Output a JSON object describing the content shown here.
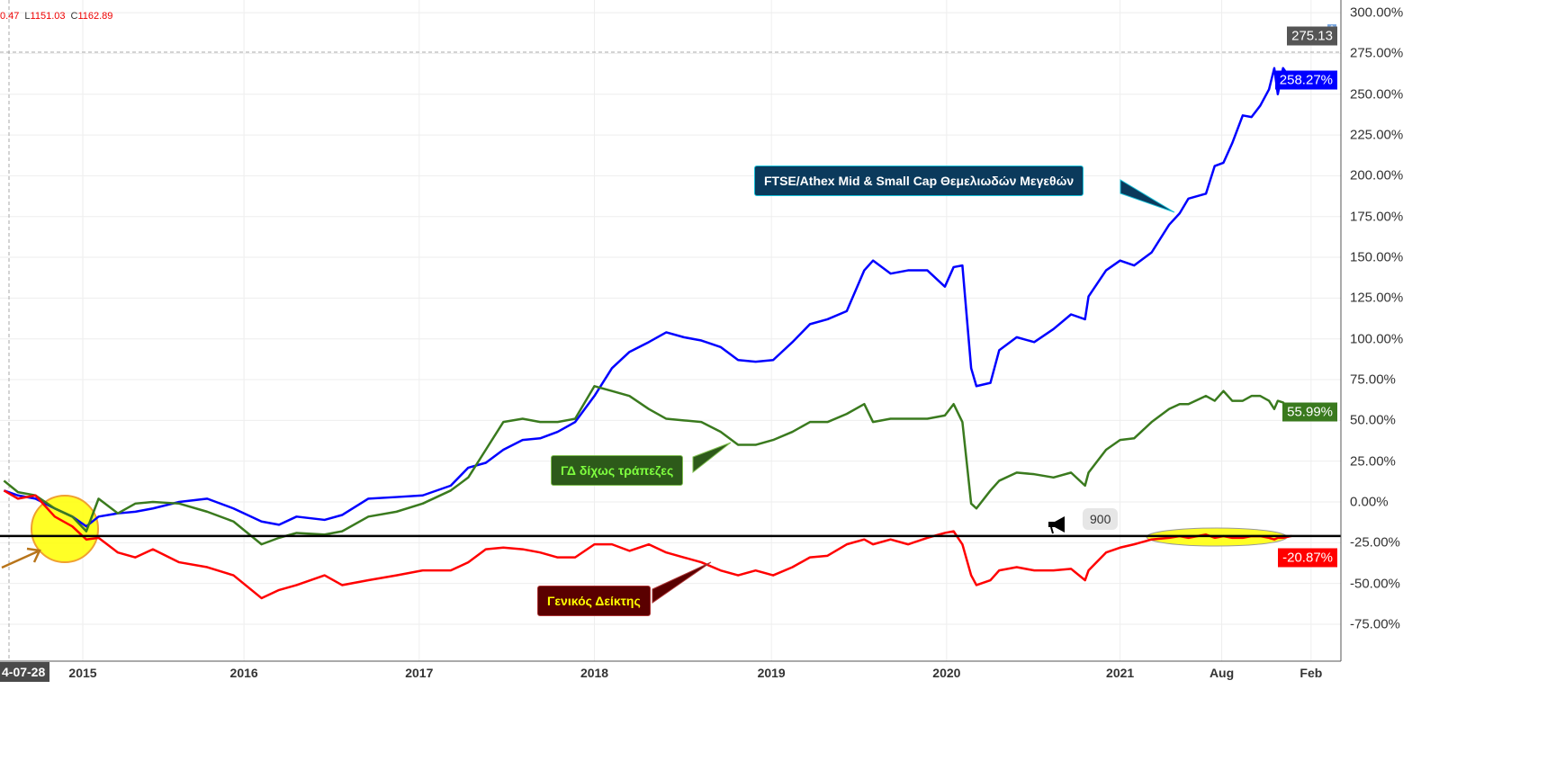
{
  "header": {
    "ohlc_partial": "0.47",
    "low_label": "L",
    "low": "1151.03",
    "close_label": "C",
    "close": "1162.89"
  },
  "start_date": "4-07-28",
  "crosshair_value": "275.13",
  "hline": {
    "label": "900",
    "icon": "megaphone-icon"
  },
  "colors": {
    "blue": "#0000ff",
    "green": "#3a7a1e",
    "red": "#ff0000"
  },
  "chart_data": {
    "type": "line",
    "xlabel": "",
    "ylabel": "",
    "ylim": [
      -75,
      300
    ],
    "yticks": [
      "300.00%",
      "275.00%",
      "250.00%",
      "225.00%",
      "200.00%",
      "175.00%",
      "150.00%",
      "125.00%",
      "100.00%",
      "75.00%",
      "50.00%",
      "25.00%",
      "0.00%",
      "-25.00%",
      "-50.00%",
      "-75.00%"
    ],
    "ytick_values": [
      300,
      275,
      250,
      225,
      200,
      175,
      150,
      125,
      100,
      75,
      50,
      25,
      0,
      -25,
      -50,
      -75
    ],
    "xticks": [
      {
        "label": "2015",
        "x": 2015.0
      },
      {
        "label": "2016",
        "x": 2015.92
      },
      {
        "label": "2017",
        "x": 2016.92
      },
      {
        "label": "2018",
        "x": 2017.92
      },
      {
        "label": "2019",
        "x": 2018.93
      },
      {
        "label": "2020",
        "x": 2019.93
      },
      {
        "label": "2021",
        "x": 2020.92
      },
      {
        "label": "Aug",
        "x": 2021.5
      },
      {
        "label": "Feb",
        "x": 2022.01
      }
    ],
    "x": [
      2014.55,
      2014.63,
      2014.73,
      2014.84,
      2014.94,
      2015.02,
      2015.09,
      2015.2,
      2015.3,
      2015.4,
      2015.55,
      2015.71,
      2015.86,
      2016.02,
      2016.12,
      2016.22,
      2016.38,
      2016.48,
      2016.63,
      2016.79,
      2016.94,
      2017.1,
      2017.2,
      2017.3,
      2017.4,
      2017.51,
      2017.61,
      2017.71,
      2017.81,
      2017.92,
      2018.02,
      2018.12,
      2018.23,
      2018.33,
      2018.43,
      2018.53,
      2018.64,
      2018.74,
      2018.84,
      2018.94,
      2019.05,
      2019.15,
      2019.25,
      2019.36,
      2019.46,
      2019.51,
      2019.61,
      2019.71,
      2019.82,
      2019.92,
      2019.97,
      2020.02,
      2020.07,
      2020.1,
      2020.18,
      2020.23,
      2020.33,
      2020.43,
      2020.54,
      2020.64,
      2020.72,
      2020.74,
      2020.84,
      2020.92,
      2021.0,
      2021.1,
      2021.2,
      2021.26,
      2021.31,
      2021.41,
      2021.46,
      2021.51,
      2021.56,
      2021.62,
      2021.67,
      2021.72,
      2021.77,
      2021.8,
      2021.82,
      2021.85,
      2021.9
    ],
    "series": [
      {
        "name": "FTSE/Athex Mid & Small Cap Θεμελιωδών Μεγεθών",
        "last_label": "258.27%",
        "color": "#0000ff",
        "values": [
          7,
          4,
          2,
          -4,
          -9,
          -15,
          -9,
          -7,
          -6,
          -4,
          0,
          2,
          -4,
          -12,
          -14,
          -9,
          -11,
          -8,
          2,
          3,
          4,
          10,
          21,
          24,
          32,
          38,
          39,
          43,
          49,
          65,
          82,
          92,
          98,
          104,
          101,
          99,
          95,
          87,
          86,
          87,
          98,
          109,
          112,
          117,
          142,
          148,
          140,
          142,
          142,
          132,
          144,
          145,
          82,
          71,
          73,
          93,
          101,
          98,
          106,
          115,
          112,
          126,
          142,
          148,
          145,
          153,
          170,
          177,
          186,
          189,
          206,
          208,
          220,
          237,
          236,
          243,
          253,
          266,
          250,
          266,
          258.27
        ]
      },
      {
        "name": "ΓΔ δίχως τράπεζες",
        "last_label": "55.99%",
        "color": "#3a7a1e",
        "values": [
          13,
          6,
          4,
          -4,
          -9,
          -18,
          2,
          -7,
          -1,
          0,
          -1,
          -6,
          -12,
          -26,
          -22,
          -19,
          -20,
          -18,
          -9,
          -6,
          -1,
          7,
          15,
          32,
          49,
          51,
          49,
          49,
          51,
          71,
          68,
          65,
          57,
          51,
          50,
          49,
          43,
          35,
          35,
          38,
          43,
          49,
          49,
          54,
          60,
          49,
          51,
          51,
          51,
          53,
          60,
          49,
          -1,
          -4,
          7,
          13,
          18,
          17,
          15,
          18,
          10,
          18,
          32,
          38,
          39,
          49,
          57,
          60,
          60,
          65,
          62,
          68,
          62,
          62,
          65,
          65,
          62,
          57,
          62,
          61,
          55.99
        ]
      },
      {
        "name": "Γενικός Δείκτης",
        "last_label": "-20.87%",
        "color": "#ff0000",
        "values": [
          7,
          2,
          4,
          -9,
          -15,
          -23,
          -22,
          -31,
          -34,
          -29,
          -37,
          -40,
          -45,
          -59,
          -54,
          -51,
          -45,
          -51,
          -48,
          -45,
          -42,
          -42,
          -37,
          -29,
          -28,
          -29,
          -31,
          -34,
          -34,
          -26,
          -26,
          -30,
          -26,
          -31,
          -34,
          -37,
          -42,
          -45,
          -42,
          -45,
          -40,
          -34,
          -33,
          -26,
          -23,
          -26,
          -23,
          -26,
          -22,
          -19,
          -18,
          -26,
          -45,
          -51,
          -48,
          -42,
          -40,
          -42,
          -42,
          -41,
          -48,
          -42,
          -31,
          -28,
          -26,
          -23,
          -22,
          -21,
          -22,
          -20,
          -22,
          -21,
          -22,
          -22,
          -21,
          -21,
          -22,
          -23,
          -22,
          -22,
          -20.87
        ]
      }
    ],
    "hline_value": -20.87,
    "annotations": [
      "FTSE/Athex Mid & Small Cap Θεμελιωδών Μεγεθών",
      "ΓΔ δίχως τράπεζες",
      "Γενικός Δείκτης"
    ]
  }
}
